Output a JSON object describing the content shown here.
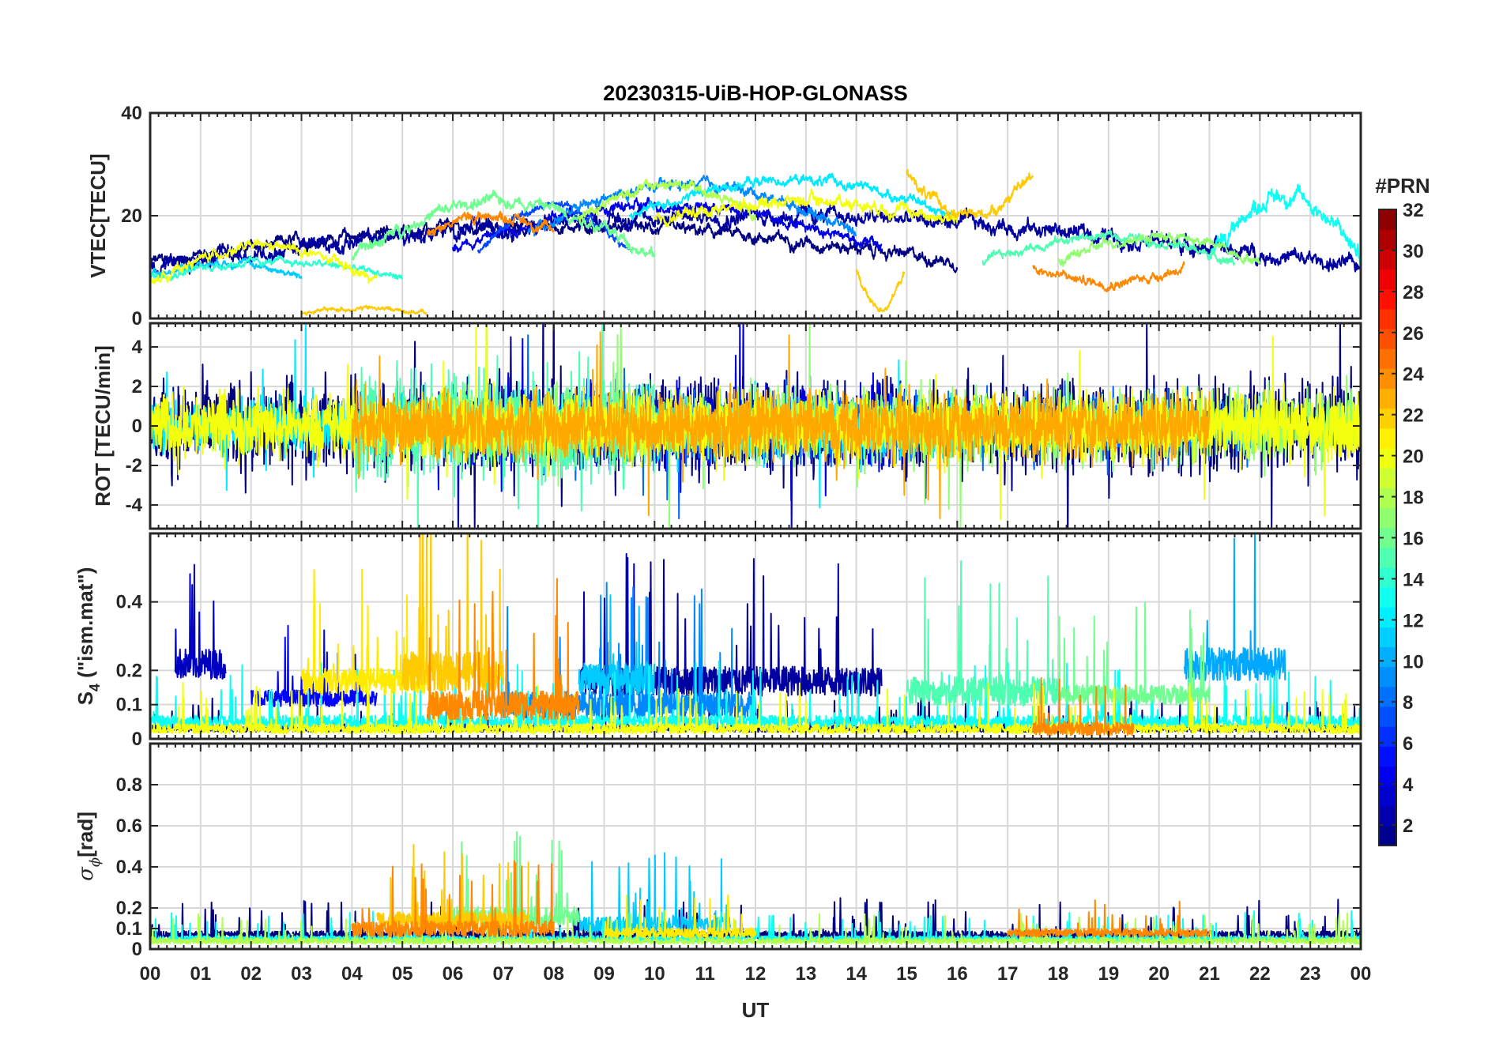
{
  "figure": {
    "title": "20230315-UiB-HOP-GLONASS",
    "xlabel": "UT",
    "xtick_labels": [
      "00",
      "01",
      "02",
      "03",
      "04",
      "05",
      "06",
      "07",
      "08",
      "09",
      "10",
      "11",
      "12",
      "13",
      "14",
      "15",
      "16",
      "17",
      "18",
      "19",
      "20",
      "21",
      "22",
      "23",
      "00"
    ]
  },
  "colorbar": {
    "label": "#PRN",
    "ticks": [
      2,
      4,
      6,
      8,
      10,
      12,
      14,
      16,
      18,
      20,
      22,
      24,
      26,
      28,
      30,
      32
    ],
    "range": [
      1,
      32
    ],
    "colormap": "jet",
    "colors": [
      "#00008f",
      "#0000ff",
      "#0080ff",
      "#00ffff",
      "#80ff80",
      "#ffff00",
      "#ff8000",
      "#ff0000",
      "#800000"
    ]
  },
  "chart_data": [
    {
      "type": "line",
      "panel": "vtec",
      "ylabel": "VTEC[TECU]",
      "xlim": [
        0,
        24
      ],
      "ylim": [
        0,
        40
      ],
      "yticks": [
        0,
        20,
        40
      ],
      "grid": true,
      "series": [
        {
          "prn": 1,
          "t0": 0.0,
          "t1": 16.0,
          "base": 11,
          "amp": 7,
          "noise": 1.0
        },
        {
          "prn": 2,
          "t0": 0.0,
          "t1": 24.0,
          "base": 10,
          "amp": 10,
          "noise": 1.3
        },
        {
          "prn": 4,
          "t0": 6.0,
          "t1": 14.5,
          "base": 14,
          "amp": 8,
          "noise": 0.9
        },
        {
          "prn": 7,
          "t0": 6.5,
          "t1": 9.5,
          "base": 13,
          "amp": 9,
          "noise": 0.7
        },
        {
          "prn": 9,
          "t0": 7.5,
          "t1": 14.0,
          "base": 17,
          "amp": 9,
          "noise": 0.9
        },
        {
          "prn": 11,
          "t0": 0.0,
          "t1": 3.0,
          "base": 8,
          "amp": 3,
          "noise": 0.6
        },
        {
          "prn": 12,
          "t0": 9.5,
          "t1": 16.0,
          "base": 20,
          "amp": 7,
          "noise": 0.8
        },
        {
          "prn": 13,
          "t0": 21.0,
          "t1": 24.0,
          "base": 12,
          "amp": 12,
          "noise": 1.4
        },
        {
          "prn": 14,
          "t0": 0.0,
          "t1": 5.0,
          "base": 8,
          "amp": 3,
          "noise": 0.6
        },
        {
          "prn": 15,
          "t0": 16.5,
          "t1": 21.5,
          "base": 11,
          "amp": 5,
          "noise": 0.7
        },
        {
          "prn": 16,
          "t0": 4.0,
          "t1": 10.0,
          "base": 12,
          "amp": 11,
          "noise": 1.0
        },
        {
          "prn": 17,
          "t0": 18.0,
          "t1": 22.0,
          "base": 11,
          "amp": 5,
          "noise": 0.8
        },
        {
          "prn": 18,
          "t0": 8.5,
          "t1": 12.0,
          "base": 20,
          "amp": 6,
          "noise": 0.9
        },
        {
          "prn": 20,
          "t0": 0.0,
          "t1": 4.5,
          "base": 7,
          "amp": 7,
          "noise": 0.8
        },
        {
          "prn": 20,
          "t0": 10.0,
          "t1": 16.0,
          "base": 19,
          "amp": 4,
          "noise": 1.0
        },
        {
          "prn": 22,
          "t0": 3.0,
          "t1": 5.5,
          "base": 1,
          "amp": 1,
          "noise": 0.4
        },
        {
          "prn": 22,
          "t0": 14.0,
          "t1": 14.95,
          "base": 9,
          "amp": -7,
          "noise": 0.6
        },
        {
          "prn": 22,
          "t0": 15.0,
          "t1": 17.5,
          "base": 28,
          "amp": -8,
          "noise": 0.9
        },
        {
          "prn": 24,
          "t0": 5.5,
          "t1": 8.0,
          "base": 17,
          "amp": 3,
          "noise": 0.9
        },
        {
          "prn": 24,
          "t0": 17.5,
          "t1": 20.5,
          "base": 10,
          "amp": -3,
          "noise": 0.8
        }
      ]
    },
    {
      "type": "line",
      "panel": "rot",
      "ylabel": "ROT [TECU/min]",
      "xlim": [
        0,
        24
      ],
      "ylim": [
        -5.2,
        5.2
      ],
      "yticks": [
        -4,
        -2,
        0,
        2,
        4
      ],
      "grid": true,
      "series": [
        {
          "prn": 1,
          "t0": 0.0,
          "t1": 24.0,
          "amp": 1.1
        },
        {
          "prn": 4,
          "t0": 5.5,
          "t1": 15.0,
          "amp": 1.0
        },
        {
          "prn": 8,
          "t0": 7.0,
          "t1": 22.0,
          "amp": 0.8
        },
        {
          "prn": 12,
          "t0": 0.0,
          "t1": 16.0,
          "amp": 0.7
        },
        {
          "prn": 15,
          "t0": 4.0,
          "t1": 10.0,
          "amp": 1.3
        },
        {
          "prn": 17,
          "t0": 6.0,
          "t1": 24.0,
          "amp": 0.9
        },
        {
          "prn": 20,
          "t0": 0.0,
          "t1": 24.0,
          "amp": 0.8
        },
        {
          "prn": 23,
          "t0": 4.0,
          "t1": 21.0,
          "amp": 0.8
        }
      ]
    },
    {
      "type": "line",
      "panel": "s4",
      "ylabel": "S4 (\"ism.mat\")",
      "xlim": [
        0,
        24
      ],
      "ylim": [
        0,
        0.6
      ],
      "yticks": [
        0,
        0.1,
        0.2,
        0.4
      ],
      "grid": true,
      "series": [
        {
          "prn": 1,
          "t0": 0.0,
          "t1": 24.0,
          "base": 0.03,
          "noise": 0.02
        },
        {
          "prn": 2,
          "t0": 8.5,
          "t1": 14.5,
          "base": 0.17,
          "noise": 0.09
        },
        {
          "prn": 3,
          "t0": 0.5,
          "t1": 1.5,
          "base": 0.22,
          "noise": 0.09
        },
        {
          "prn": 5,
          "t0": 2.0,
          "t1": 4.5,
          "base": 0.12,
          "noise": 0.05
        },
        {
          "prn": 9,
          "t0": 7.0,
          "t1": 12.0,
          "base": 0.1,
          "noise": 0.08
        },
        {
          "prn": 10,
          "t0": 20.5,
          "t1": 22.5,
          "base": 0.22,
          "noise": 0.1
        },
        {
          "prn": 11,
          "t0": 8.5,
          "t1": 10.0,
          "base": 0.18,
          "noise": 0.1
        },
        {
          "prn": 13,
          "t0": 0.0,
          "t1": 24.0,
          "base": 0.05,
          "noise": 0.04
        },
        {
          "prn": 15,
          "t0": 15.0,
          "t1": 18.0,
          "base": 0.14,
          "noise": 0.09
        },
        {
          "prn": 16,
          "t0": 18.0,
          "t1": 21.0,
          "base": 0.13,
          "noise": 0.06
        },
        {
          "prn": 20,
          "t0": 0.0,
          "t1": 24.0,
          "base": 0.03,
          "noise": 0.03
        },
        {
          "prn": 21,
          "t0": 3.0,
          "t1": 5.5,
          "base": 0.17,
          "noise": 0.08
        },
        {
          "prn": 22,
          "t0": 5.0,
          "t1": 7.0,
          "base": 0.2,
          "noise": 0.12
        },
        {
          "prn": 24,
          "t0": 5.5,
          "t1": 8.5,
          "base": 0.1,
          "noise": 0.09
        },
        {
          "prn": 24,
          "t0": 17.5,
          "t1": 19.5,
          "base": 0.03,
          "noise": 0.04
        }
      ]
    },
    {
      "type": "line",
      "panel": "sigma_phi",
      "ylabel": "σφ[rad]",
      "xlim": [
        0,
        24
      ],
      "ylim": [
        0,
        1.0
      ],
      "yticks": [
        0,
        0.1,
        0.2,
        0.4,
        0.6,
        0.8
      ],
      "grid": true,
      "series": [
        {
          "prn": 1,
          "t0": 0.0,
          "t1": 24.0,
          "base": 0.07,
          "noise": 0.04
        },
        {
          "prn": 11,
          "t0": 8.5,
          "t1": 11.5,
          "base": 0.12,
          "noise": 0.08
        },
        {
          "prn": 13,
          "t0": 0.0,
          "t1": 24.0,
          "base": 0.05,
          "noise": 0.03
        },
        {
          "prn": 16,
          "t0": 6.0,
          "t1": 8.5,
          "base": 0.16,
          "noise": 0.1
        },
        {
          "prn": 18,
          "t0": 0.0,
          "t1": 24.0,
          "base": 0.04,
          "noise": 0.03
        },
        {
          "prn": 21,
          "t0": 9.0,
          "t1": 12.0,
          "base": 0.08,
          "noise": 0.05
        },
        {
          "prn": 22,
          "t0": 4.5,
          "t1": 7.5,
          "base": 0.14,
          "noise": 0.09
        },
        {
          "prn": 24,
          "t0": 4.0,
          "t1": 8.0,
          "base": 0.1,
          "noise": 0.08
        },
        {
          "prn": 24,
          "t0": 17.0,
          "t1": 21.0,
          "base": 0.08,
          "noise": 0.04
        }
      ]
    }
  ]
}
